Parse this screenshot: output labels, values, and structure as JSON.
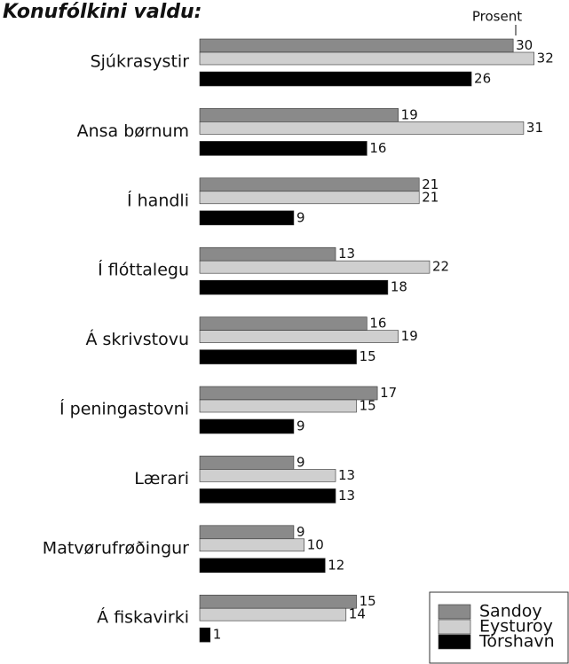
{
  "chart_data": {
    "type": "hbar",
    "title": "Konufólkini valdu:",
    "xlabel": "Prosent",
    "categories": [
      "Sjúkrasystir",
      "Ansa børnum",
      "Í handli",
      "Í flóttalegu",
      "Á skrivstovu",
      "Í peningastovni",
      "Lærari",
      "Matvørufrøðingur",
      "Á fiskavirki"
    ],
    "series": [
      {
        "name": "Sandoy",
        "color": "#8a8a8a",
        "values": [
          30,
          19,
          21,
          13,
          16,
          17,
          9,
          9,
          15
        ]
      },
      {
        "name": "Eysturoy",
        "color": "#cfcfcf",
        "values": [
          32,
          31,
          21,
          22,
          19,
          15,
          13,
          10,
          14
        ]
      },
      {
        "name": "Tórshavn",
        "color": "#000000",
        "values": [
          26,
          16,
          9,
          18,
          15,
          9,
          13,
          12,
          1
        ]
      }
    ],
    "xlim": [
      0,
      35
    ],
    "legend": "lower right"
  }
}
